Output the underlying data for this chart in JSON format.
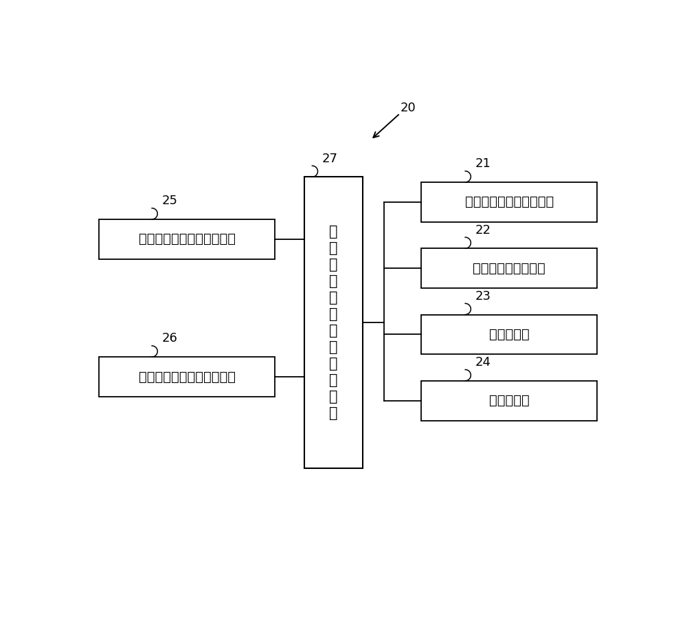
{
  "bg_color": "#ffffff",
  "label_20": "20",
  "label_27": "27",
  "label_25": "25",
  "label_26": "26",
  "label_21": "21",
  "label_22": "22",
  "label_23": "23",
  "label_24": "24",
  "center_box_text": "肿\n瘤\n细\n胞\n含\n量\n评\n估\n侧\n控\n制\n部",
  "box25_text": "肿瘤细胞含量评估侧通信部",
  "box26_text": "肿瘤细胞含量评估侧暂存部",
  "box21_text": "单个肿瘤细胞含量计算部",
  "box22_text": "肿瘤细胞含量计算部",
  "box23_text": "含量评估部",
  "box24_text": "信息存储部",
  "font_size_box": 14,
  "font_size_center": 15,
  "font_size_label": 13,
  "line_color": "#000000",
  "box_edge_color": "#000000",
  "box_face_color": "#ffffff",
  "text_color": "#000000"
}
